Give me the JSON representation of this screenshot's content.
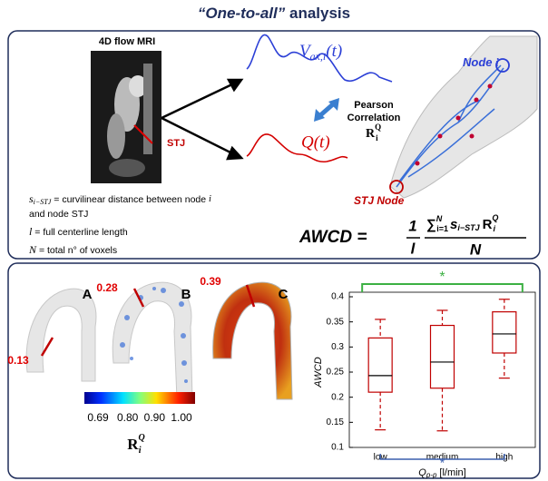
{
  "title": {
    "quoted": "“One-to-all”",
    "rest": "analysis"
  },
  "top_panel": {
    "mri_label": "4D flow MRI",
    "stj_label": "STJ",
    "velocity_label": "V",
    "velocity_sub": "ax,i",
    "velocity_arg": "(t)",
    "flow_label": "Q(t)",
    "pearson": [
      "Pearson",
      "Correlation"
    ],
    "coef": {
      "symbol": "R",
      "sup": "Q",
      "sub": "i"
    },
    "node_label": "Node",
    "node_index": "i",
    "stj_node_label": "STJ Node",
    "definitions": [
      {
        "symbol": "s",
        "sub": "i−STJ",
        "text": "= curvilinear distance between node",
        "index": "i"
      },
      {
        "text": "and node STJ"
      },
      {
        "symbol": "l",
        "text": "= full centerline length"
      },
      {
        "symbol": "N",
        "text": "= total n° of voxels"
      }
    ],
    "formula": {
      "lhs": "AWCD =",
      "num": "1",
      "den": "l",
      "sum": "∑",
      "sum_sup": "N",
      "sum_sub": "i=1",
      "term": "s",
      "term_sub": "i−STJ",
      "coef": "R",
      "coef_sup": "Q",
      "coef_sub": "i",
      "sum_den": "N"
    }
  },
  "bottom_panel": {
    "cases": [
      {
        "label": "A",
        "value": 0.13
      },
      {
        "label": "B",
        "value": 0.28
      },
      {
        "label": "C",
        "value": 0.39
      }
    ],
    "colorbar": {
      "lim": [
        0.69,
        1.0
      ],
      "ticks": [
        0.69,
        {
          "value": 0.8,
          "label": "0.80"
        },
        {
          "value": 0.9,
          "label": "0.90"
        },
        {
          "value": 1.0,
          "label": "1.00"
        }
      ],
      "label": {
        "symbol": "R",
        "sup": "Q",
        "sub": "i"
      }
    }
  },
  "chart_data": {
    "type": "box",
    "categories": [
      "low",
      "medium",
      "high"
    ],
    "boxes": [
      {
        "whislo": 0.135,
        "q1": 0.21,
        "med": 0.243,
        "q3": 0.318,
        "whishi": 0.355
      },
      {
        "whislo": 0.133,
        "q1": 0.218,
        "med": 0.27,
        "q3": 0.343,
        "whishi": 0.373
      },
      {
        "whislo": 0.238,
        "q1": 0.288,
        "med": 0.326,
        "q3": 0.37,
        "whishi": 0.395
      }
    ],
    "color": "#c00000",
    "ylim": [
      0.1,
      0.4
    ],
    "yticks": [
      0.1,
      0.15,
      0.2,
      0.25,
      0.3,
      0.35,
      0.4
    ],
    "ylabel": "AWCD",
    "xlabel": {
      "symbol": "Q",
      "sub": "p-p",
      "unit": "[l/min]"
    },
    "significance": [
      {
        "label": "*",
        "color": "#3cb043"
      },
      {
        "label": "*",
        "color": "#3a5fae"
      }
    ]
  }
}
